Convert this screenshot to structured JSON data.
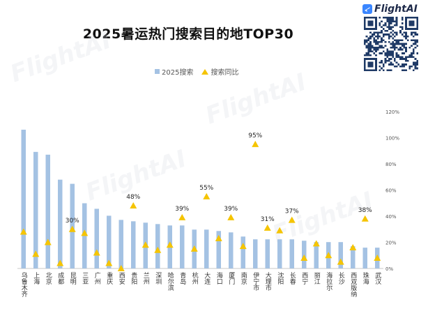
{
  "brand": {
    "name": "FlightAI"
  },
  "watermark_text": "FlightAI",
  "chart_data": {
    "type": "bar",
    "title": "2025暑运热门搜索目的地TOP30",
    "legend": [
      "2025搜索",
      "搜索同比"
    ],
    "legend_position": "top",
    "colors": {
      "bar": "#a4c2e3",
      "marker": "#f5c400",
      "text": "#222222",
      "axis": "#c8c8c8"
    },
    "categories": [
      "乌鲁木齐",
      "上海",
      "北京",
      "成都",
      "昆明",
      "三亚",
      "广州",
      "重庆",
      "西安",
      "贵阳",
      "兰州",
      "深圳",
      "哈尔滨",
      "青岛",
      "杭州",
      "大连",
      "海口",
      "厦门",
      "南京",
      "伊宁市",
      "大理市",
      "沈阳",
      "长春",
      "西宁",
      "丽江",
      "海拉尔",
      "长沙",
      "西双版纳",
      "珠海",
      "武汉"
    ],
    "bar_values": [
      100,
      84,
      82,
      64,
      61,
      47,
      43,
      38,
      35,
      34,
      33,
      32,
      31,
      31,
      28,
      28,
      27,
      26,
      23,
      21,
      21,
      21,
      21,
      20,
      19,
      19,
      19,
      16,
      15,
      15
    ],
    "y2": {
      "min": 0,
      "max": 120,
      "ticks": [
        "0%",
        "20%",
        "40%",
        "60%",
        "80%",
        "100%",
        "120%"
      ]
    },
    "markers": [
      28,
      11,
      20,
      4,
      30,
      27,
      12,
      4,
      0,
      48,
      18,
      14,
      18,
      39,
      15,
      55,
      23,
      39,
      17,
      95,
      31,
      29,
      37,
      8,
      19,
      10,
      5,
      16,
      38,
      8
    ],
    "marker_labels": [
      "",
      "",
      "",
      "",
      "30%",
      "",
      "",
      "",
      "",
      "48%",
      "",
      "",
      "",
      "39%",
      "",
      "55%",
      "",
      "39%",
      "",
      "95%",
      "31%",
      "",
      "37%",
      "",
      "",
      "",
      "",
      "",
      "38%",
      ""
    ]
  }
}
